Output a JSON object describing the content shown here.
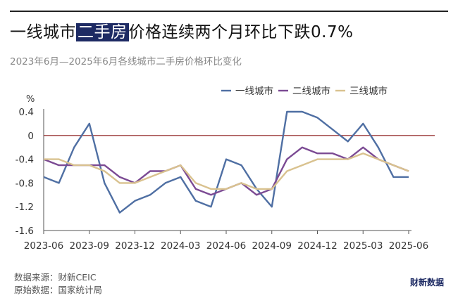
{
  "header": {
    "title_before": "一线城市",
    "title_highlight": "二手房",
    "title_after": "价格连续两个月环比下跌0.7%",
    "subtitle": "2023年6月—2025年6月各线城市二手房价格环比变化"
  },
  "chart_data": {
    "type": "line",
    "ylabel": "%",
    "ylim": [
      -1.6,
      0.4
    ],
    "yticks": [
      0.4,
      0,
      -0.4,
      -0.8,
      -1.2,
      -1.6
    ],
    "x": [
      "2023-06",
      "2023-07",
      "2023-08",
      "2023-09",
      "2023-10",
      "2023-11",
      "2023-12",
      "2024-01",
      "2024-02",
      "2024-03",
      "2024-04",
      "2024-05",
      "2024-06",
      "2024-07",
      "2024-08",
      "2024-09",
      "2024-10",
      "2024-11",
      "2024-12",
      "2025-01",
      "2025-02",
      "2025-03",
      "2025-04",
      "2025-05",
      "2025-06"
    ],
    "xtick_labels": [
      "2023-06",
      "2023-09",
      "2023-12",
      "2024-03",
      "2024-06",
      "2024-09",
      "2024-12",
      "2025-03",
      "2025-06"
    ],
    "reference_line": 0,
    "legend_position": "top-right",
    "series": [
      {
        "name": "一线城市",
        "color": "#4f6fa3",
        "values": [
          -0.7,
          -0.8,
          -0.2,
          0.2,
          -0.8,
          -1.3,
          -1.1,
          -1.0,
          -0.8,
          -0.7,
          -1.1,
          -1.2,
          -0.4,
          -0.5,
          -0.9,
          -1.2,
          0.4,
          0.4,
          0.3,
          0.1,
          -0.1,
          0.2,
          -0.2,
          -0.7,
          -0.7
        ]
      },
      {
        "name": "二线城市",
        "color": "#7b4a93",
        "values": [
          -0.4,
          -0.5,
          -0.5,
          -0.5,
          -0.5,
          -0.7,
          -0.8,
          -0.6,
          -0.6,
          -0.5,
          -0.9,
          -1.0,
          -0.9,
          -0.8,
          -1.0,
          -0.9,
          -0.4,
          -0.2,
          -0.3,
          -0.3,
          -0.4,
          -0.2,
          -0.4,
          -0.5,
          -0.6
        ]
      },
      {
        "name": "三线城市",
        "color": "#d9c28f",
        "values": [
          -0.4,
          -0.4,
          -0.5,
          -0.5,
          -0.6,
          -0.8,
          -0.8,
          -0.7,
          -0.6,
          -0.5,
          -0.8,
          -0.9,
          -0.9,
          -0.8,
          -0.9,
          -0.9,
          -0.6,
          -0.5,
          -0.4,
          -0.4,
          -0.4,
          -0.3,
          -0.4,
          -0.5,
          -0.6
        ]
      }
    ],
    "colors": {
      "zero_line": "#8b1a1a",
      "axis": "#555555"
    }
  },
  "footer": {
    "source_line": "数据来源：财新CEIC",
    "origin_line": "原始数据：国家统计局",
    "brand": "财新数据"
  }
}
